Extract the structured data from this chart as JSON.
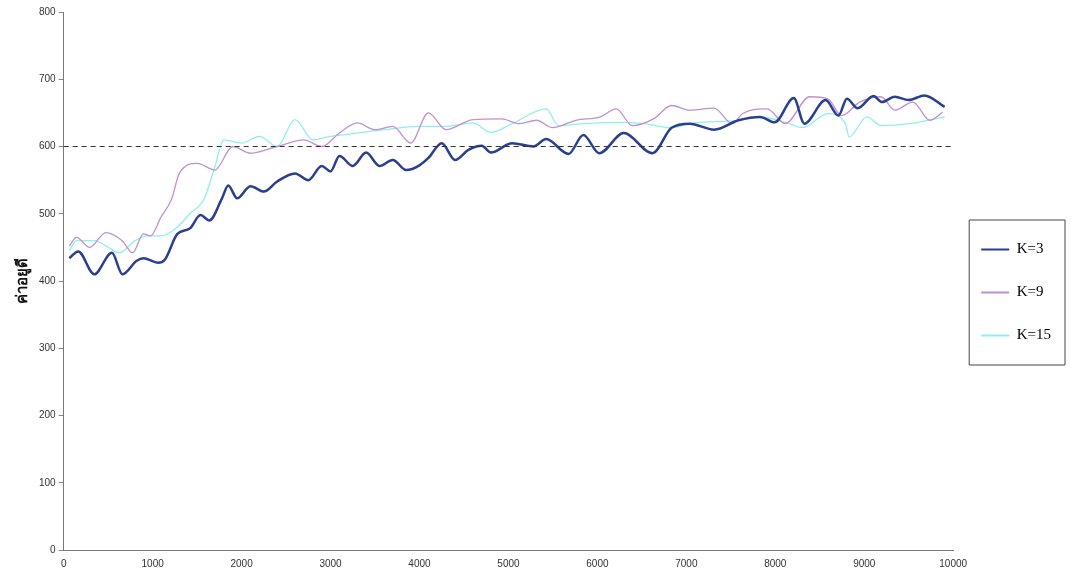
{
  "chart_data": {
    "type": "line",
    "ylabel": "ค่าอยูดี",
    "xlim": [
      0,
      10000
    ],
    "xticks": [
      0,
      1000,
      2000,
      3000,
      4000,
      5000,
      6000,
      7000,
      8000,
      9000,
      10000
    ],
    "ylim": [
      0,
      800
    ],
    "yticks": [
      0,
      100,
      200,
      300,
      400,
      500,
      600,
      700,
      800
    ],
    "grid": false,
    "legend": "right",
    "marker": "none",
    "line_style": "solid",
    "ref_lines": [
      {
        "axis": "y",
        "value": 600,
        "color": "#333333",
        "line_style": "dashed"
      }
    ],
    "series": [
      {
        "name": "K=3",
        "color": "#2a3f8f",
        "x": [
          64,
          163,
          343,
          542,
          661,
          821,
          896,
          1060,
          1139,
          1278,
          1418,
          1538,
          1637,
          1777,
          1850,
          1950,
          2100,
          2250,
          2400,
          2600,
          2750,
          2900,
          3000,
          3100,
          3250,
          3400,
          3550,
          3700,
          3850,
          4000,
          4100,
          4250,
          4400,
          4550,
          4700,
          4803,
          5042,
          5281,
          5424,
          5675,
          5842,
          6021,
          6296,
          6619,
          6834,
          7037,
          7312,
          7587,
          7826,
          7993,
          8208,
          8327,
          8566,
          8710,
          8805,
          8925,
          9104,
          9200,
          9343,
          9498,
          9677,
          9904
        ],
        "values": [
          434,
          444,
          410,
          442,
          410,
          430,
          434,
          427,
          432,
          470,
          478,
          498,
          490,
          522,
          542,
          523,
          541,
          533,
          548,
          560,
          550,
          571,
          563,
          586,
          571,
          591,
          571,
          580,
          565,
          572,
          583,
          605,
          580,
          595,
          601,
          591,
          605,
          600,
          611,
          589,
          617,
          590,
          620,
          590,
          628,
          634,
          625,
          639,
          644,
          636,
          672,
          634,
          669,
          646,
          671,
          657,
          675,
          666,
          674,
          669,
          676,
          659
        ]
      },
      {
        "name": "K=9",
        "color": "#c090d0",
        "x": [
          64,
          143,
          293,
          472,
          657,
          776,
          896,
          975,
          1094,
          1214,
          1300,
          1500,
          1700,
          1900,
          2100,
          2400,
          2700,
          2900,
          3100,
          3300,
          3500,
          3700,
          3900,
          4100,
          4300,
          4600,
          4922,
          5125,
          5317,
          5496,
          5759,
          6033,
          6213,
          6392,
          6631,
          6834,
          7037,
          7312,
          7515,
          7634,
          7909,
          8112,
          8387,
          8590,
          8746,
          8949,
          9188,
          9343,
          9546,
          9737,
          9880
        ],
        "values": [
          452,
          465,
          450,
          472,
          460,
          442,
          470,
          467,
          495,
          522,
          560,
          575,
          565,
          600,
          590,
          600,
          610,
          600,
          620,
          635,
          625,
          630,
          605,
          650,
          625,
          640,
          641,
          634,
          639,
          628,
          639,
          644,
          656,
          631,
          641,
          661,
          654,
          657,
          634,
          649,
          656,
          634,
          674,
          671,
          646,
          666,
          674,
          654,
          666,
          639,
          651
        ]
      },
      {
        "name": "K=15",
        "color": "#90eeee",
        "x": [
          64,
          143,
          343,
          502,
          621,
          804,
          940,
          1099,
          1259,
          1418,
          1578,
          1700,
          1800,
          2000,
          2200,
          2400,
          2600,
          2800,
          3000,
          3300,
          3600,
          4000,
          4300,
          4600,
          4803,
          5042,
          5424,
          5564,
          5842,
          6242,
          6523,
          6834,
          7037,
          7312,
          7587,
          7826,
          8112,
          8307,
          8590,
          8789,
          8829,
          9029,
          9188,
          9507,
          9904
        ],
        "values": [
          445,
          460,
          460,
          450,
          442,
          460,
          467,
          467,
          478,
          500,
          522,
          570,
          610,
          605,
          615,
          600,
          640,
          610,
          615,
          620,
          625,
          630,
          630,
          635,
          621,
          634,
          656,
          631,
          634,
          636,
          634,
          628,
          634,
          null,
          639,
          644,
          636,
          628,
          649,
          634,
          614,
          644,
          631,
          634,
          644
        ]
      }
    ]
  }
}
